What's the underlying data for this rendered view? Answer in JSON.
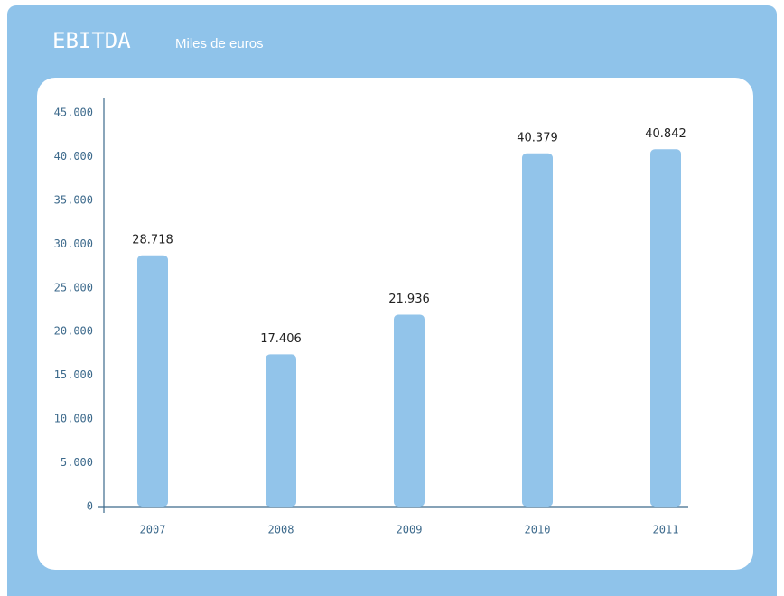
{
  "chart_data": {
    "type": "bar",
    "title": "EBITDA",
    "subtitle": "Miles de euros",
    "categories": [
      "2007",
      "2008",
      "2009",
      "2010",
      "2011"
    ],
    "values": [
      28718,
      17406,
      21936,
      40379,
      40842
    ],
    "value_labels": [
      "28.718",
      "17.406",
      "21.936",
      "40.379",
      "40.842"
    ],
    "color": "#92c4ea",
    "ylim": [
      0,
      45000
    ],
    "yticks": [
      0,
      {
        "value": 5000,
        "label": "5.000"
      },
      {
        "value": 10000,
        "label": "10.000"
      },
      {
        "value": 15000,
        "label": "15.000"
      },
      {
        "value": 20000,
        "label": "20.000"
      },
      {
        "value": 25000,
        "label": "25.000"
      },
      {
        "value": 30000,
        "label": "30.000"
      },
      {
        "value": 35000,
        "label": "35.000"
      },
      {
        "value": 40000,
        "label": "40.000"
      },
      {
        "value": 45000,
        "label": "45.000"
      }
    ],
    "grid": false
  }
}
